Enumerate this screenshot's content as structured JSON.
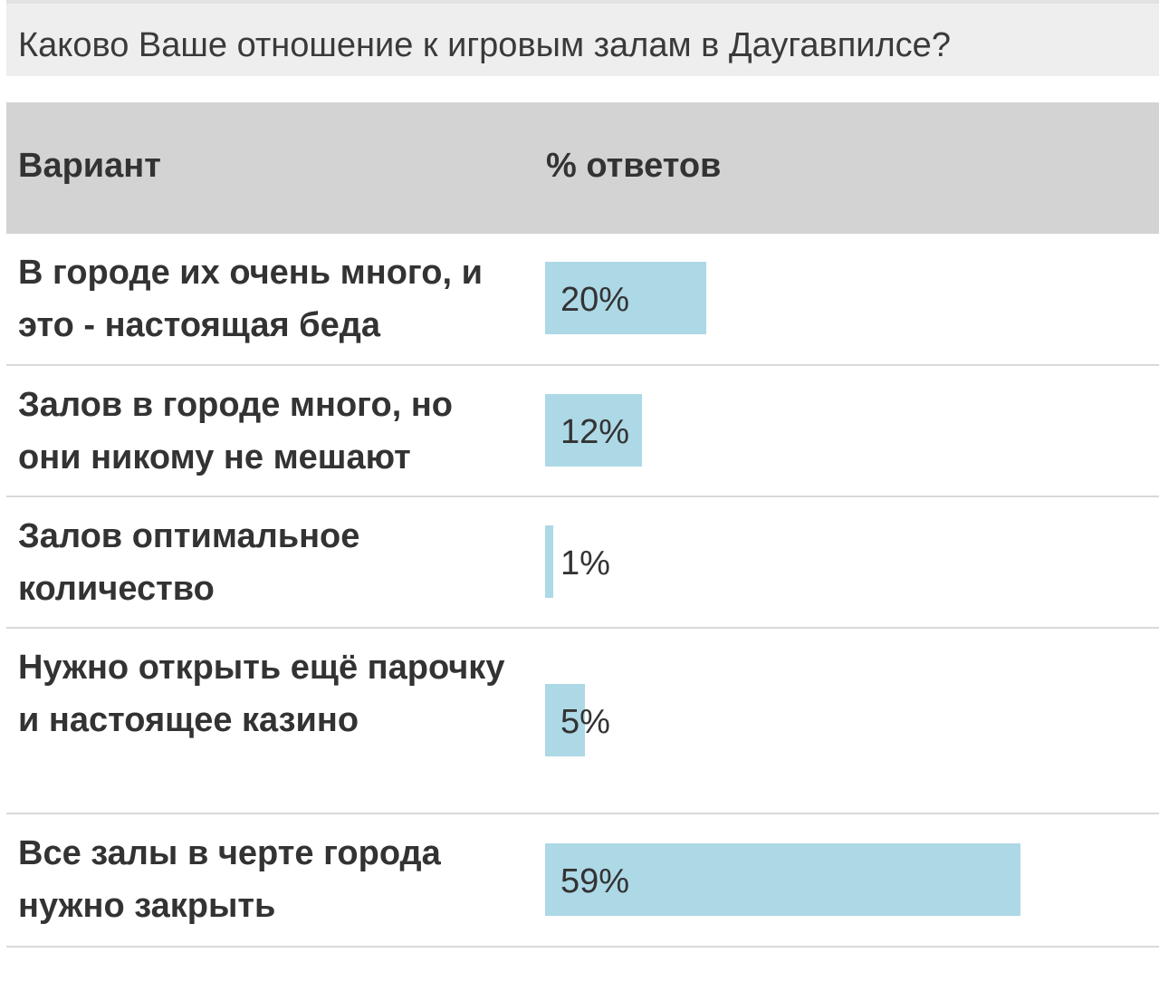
{
  "poll": {
    "question": "Каково Ваше отношение к игровым залам в Даугавпилсе?",
    "header": {
      "variant": "Вариант",
      "percent": "% ответов"
    },
    "bar_color": "#add8e6"
  },
  "chart_data": {
    "type": "bar",
    "orientation": "horizontal",
    "title": "Каково Ваше отношение к игровым залам в Даугавпилсе?",
    "categories": [
      "В городе их очень много, и это - настоящая беда",
      "Залов в городе много, но они никому не мешают",
      "Залов оптимальное количество",
      "Нужно открыть ещё парочку и настоящее казино",
      "Все залы в черте города нужно закрыть"
    ],
    "values": [
      20,
      12,
      1,
      5,
      59
    ],
    "value_labels": [
      "20%",
      "12%",
      "1%",
      "5%",
      "59%"
    ],
    "xlim": [
      0,
      75
    ],
    "grid": false
  }
}
